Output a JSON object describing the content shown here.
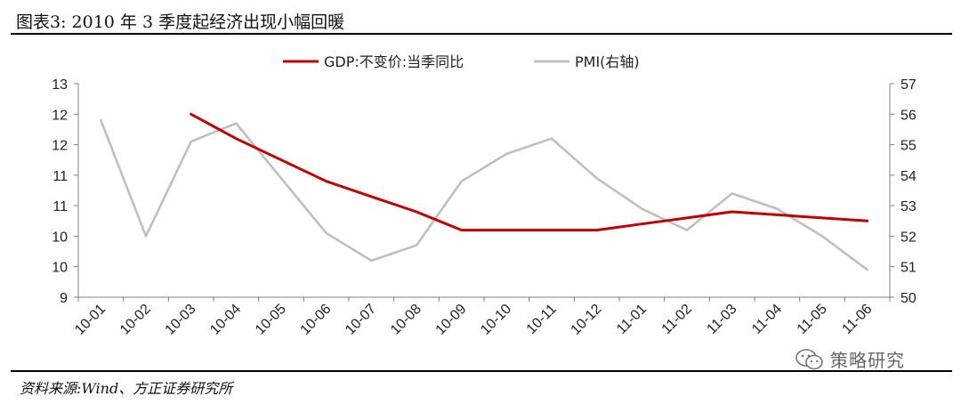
{
  "title": "图表3:  2010 年 3 季度起经济出现小幅回暖",
  "source": "资料来源:Wind、方正证券研究所",
  "watermark": "策略研究",
  "colors": {
    "gdp": "#c00000",
    "pmi": "#bfbfbf",
    "axis": "#7f7f7f",
    "text": "#222222"
  },
  "chart_data": {
    "type": "line",
    "title": "",
    "categories": [
      "10-01",
      "10-02",
      "10-03",
      "10-04",
      "10-05",
      "10-06",
      "10-07",
      "10-08",
      "10-09",
      "10-10",
      "10-11",
      "10-12",
      "11-01",
      "11-02",
      "11-03",
      "11-04",
      "11-05",
      "11-06"
    ],
    "left_axis": {
      "ticks": [
        "13",
        "12",
        "12",
        "11",
        "11",
        "10",
        "10",
        "9"
      ]
    },
    "right_axis": {
      "ticks": [
        "57",
        "56",
        "55",
        "54",
        "53",
        "52",
        "51",
        "50"
      ],
      "ylim": [
        50,
        57
      ]
    },
    "series": [
      {
        "name": "GDP:不变价:当季同比",
        "axis": "left",
        "color": "#c00000",
        "values": [
          null,
          null,
          12.6,
          12.2,
          11.85,
          11.5,
          11.25,
          11.0,
          10.7,
          10.7,
          10.7,
          10.7,
          10.8,
          10.9,
          11.0,
          10.95,
          10.9,
          10.85
        ]
      },
      {
        "name": "PMI(右轴)",
        "axis": "right",
        "color": "#bfbfbf",
        "values": [
          55.8,
          52.0,
          55.1,
          55.7,
          53.9,
          52.1,
          51.2,
          51.7,
          53.8,
          54.7,
          55.2,
          53.9,
          52.9,
          52.2,
          53.4,
          52.9,
          52.0,
          50.9
        ]
      }
    ],
    "left_ylim": [
      9.6,
      13.1
    ],
    "legend": {
      "position": "top-center"
    },
    "grid": false
  }
}
